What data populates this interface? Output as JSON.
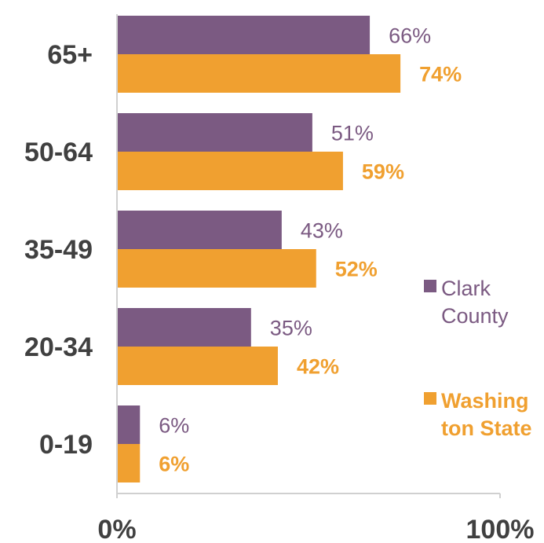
{
  "chart_data": {
    "type": "bar",
    "orientation": "horizontal",
    "categories": [
      "65+",
      "50-64",
      "35-49",
      "20-34",
      "0-19"
    ],
    "series": [
      {
        "name": "Clark County",
        "values": [
          66,
          51,
          43,
          35,
          6
        ],
        "value_labels": [
          "66%",
          "51%",
          "43%",
          "35%",
          "6%"
        ],
        "color": "#7b5a82"
      },
      {
        "name": "Washington State",
        "values": [
          74,
          59,
          52,
          42,
          6
        ],
        "value_labels": [
          "74%",
          "59%",
          "52%",
          "42%",
          "6%"
        ],
        "color": "#f0a030"
      }
    ],
    "xlim": [
      0,
      100
    ],
    "x_ticks": [
      "0%",
      "100%"
    ],
    "legend": {
      "placement": "right",
      "entries": [
        {
          "lines": [
            "Clark",
            "County"
          ],
          "color": "#7b5a82"
        },
        {
          "lines": [
            "Washing",
            "ton State"
          ],
          "color": "#f0a030"
        }
      ]
    },
    "grid": false
  }
}
